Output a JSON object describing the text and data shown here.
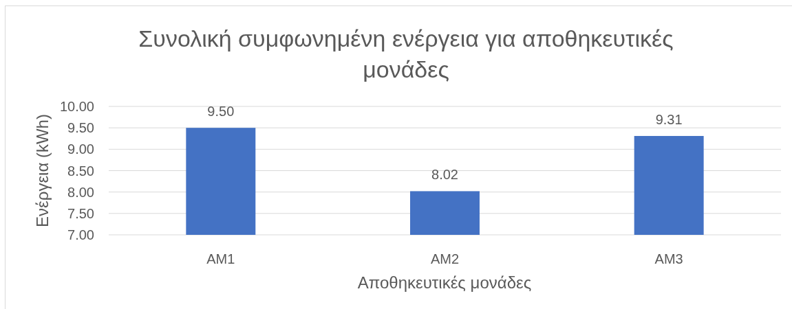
{
  "chart_data": {
    "type": "bar",
    "title": "Συνολική συμφωνημένη ενέργεια για αποθηκευτικές μονάδες",
    "xlabel": "Αποθηκευτικές μονάδες",
    "ylabel": "Ενέργεια (kWh)",
    "categories": [
      "AM1",
      "AM2",
      "AM3"
    ],
    "values": [
      9.5,
      8.02,
      9.31
    ],
    "value_labels": [
      "9.50",
      "8.02",
      "9.31"
    ],
    "color": "#4472c4",
    "ylim": [
      7,
      10
    ],
    "yticks": [
      {
        "value": 7,
        "label": "7.00"
      },
      {
        "value": 7.5,
        "label": "7.50"
      },
      {
        "value": 8,
        "label": "8.00"
      },
      {
        "value": 8.5,
        "label": "8.50"
      },
      {
        "value": 9,
        "label": "9.00"
      },
      {
        "value": 9.5,
        "label": "9.50"
      },
      {
        "value": 10,
        "label": "10.00"
      }
    ],
    "grid": "y"
  }
}
